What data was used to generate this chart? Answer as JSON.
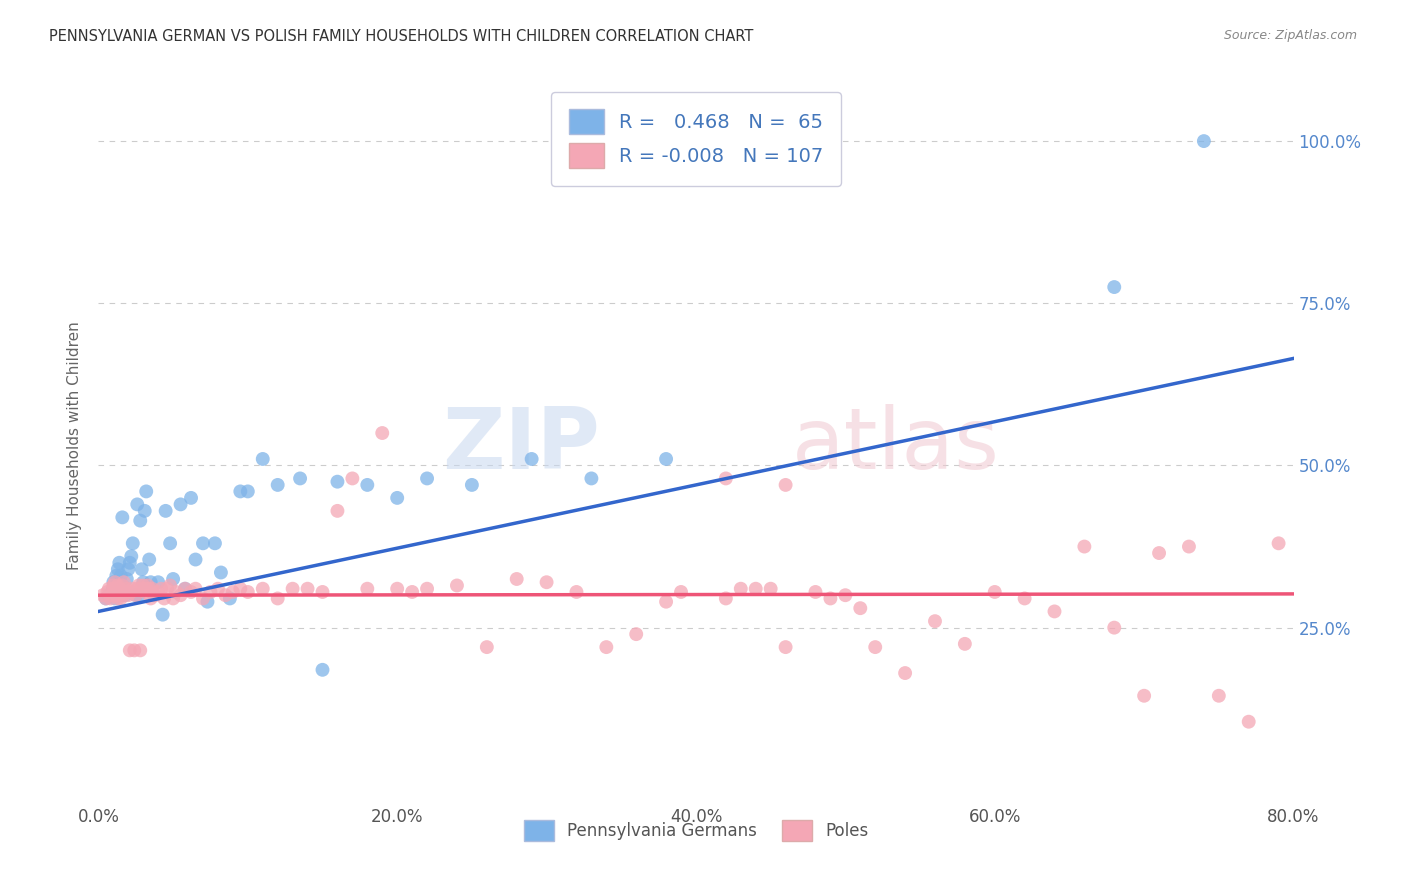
{
  "title": "PENNSYLVANIA GERMAN VS POLISH FAMILY HOUSEHOLDS WITH CHILDREN CORRELATION CHART",
  "source": "Source: ZipAtlas.com",
  "ylabel": "Family Households with Children",
  "xlabel_labels": [
    "Pennsylvania Germans",
    "Poles"
  ],
  "watermark_zip": "ZIP",
  "watermark_atlas": "atlas",
  "blue_R": "0.468",
  "blue_N": "65",
  "pink_R": "-0.008",
  "pink_N": "107",
  "blue_color": "#7EB3E8",
  "pink_color": "#F4A7B5",
  "blue_line_color": "#3366CC",
  "pink_line_color": "#EE5577",
  "xlim": [
    0.0,
    0.8
  ],
  "ylim": [
    -0.02,
    1.08
  ],
  "ytick_vals": [
    0.0,
    0.25,
    0.5,
    0.75,
    1.0
  ],
  "ytick_labels_right": [
    "",
    "25.0%",
    "50.0%",
    "75.0%",
    "100.0%"
  ],
  "xtick_vals": [
    0.0,
    0.2,
    0.4,
    0.6,
    0.8
  ],
  "xtick_labels": [
    "0.0%",
    "20.0%",
    "40.0%",
    "60.0%",
    "80.0%"
  ],
  "blue_scatter_x": [
    0.005,
    0.007,
    0.009,
    0.01,
    0.01,
    0.011,
    0.011,
    0.012,
    0.012,
    0.013,
    0.013,
    0.014,
    0.014,
    0.015,
    0.015,
    0.016,
    0.016,
    0.017,
    0.018,
    0.019,
    0.02,
    0.021,
    0.022,
    0.023,
    0.025,
    0.026,
    0.027,
    0.028,
    0.029,
    0.03,
    0.031,
    0.032,
    0.034,
    0.035,
    0.037,
    0.04,
    0.043,
    0.045,
    0.048,
    0.05,
    0.055,
    0.058,
    0.062,
    0.065,
    0.07,
    0.073,
    0.078,
    0.082,
    0.088,
    0.095,
    0.1,
    0.11,
    0.12,
    0.135,
    0.15,
    0.16,
    0.18,
    0.2,
    0.22,
    0.25,
    0.29,
    0.33,
    0.38,
    0.68,
    0.74
  ],
  "blue_scatter_y": [
    0.295,
    0.3,
    0.305,
    0.31,
    0.32,
    0.295,
    0.315,
    0.3,
    0.33,
    0.31,
    0.34,
    0.31,
    0.35,
    0.3,
    0.33,
    0.315,
    0.42,
    0.305,
    0.3,
    0.325,
    0.34,
    0.35,
    0.36,
    0.38,
    0.3,
    0.44,
    0.3,
    0.415,
    0.34,
    0.32,
    0.43,
    0.46,
    0.355,
    0.32,
    0.3,
    0.32,
    0.27,
    0.43,
    0.38,
    0.325,
    0.44,
    0.31,
    0.45,
    0.355,
    0.38,
    0.29,
    0.38,
    0.335,
    0.295,
    0.46,
    0.46,
    0.51,
    0.47,
    0.48,
    0.185,
    0.475,
    0.47,
    0.45,
    0.48,
    0.47,
    0.51,
    0.48,
    0.51,
    0.775,
    1.0
  ],
  "pink_scatter_x": [
    0.003,
    0.005,
    0.006,
    0.007,
    0.008,
    0.009,
    0.01,
    0.01,
    0.011,
    0.011,
    0.012,
    0.012,
    0.013,
    0.013,
    0.014,
    0.014,
    0.015,
    0.015,
    0.016,
    0.016,
    0.017,
    0.017,
    0.018,
    0.019,
    0.02,
    0.021,
    0.022,
    0.023,
    0.024,
    0.025,
    0.026,
    0.027,
    0.028,
    0.029,
    0.03,
    0.031,
    0.032,
    0.033,
    0.034,
    0.035,
    0.036,
    0.038,
    0.04,
    0.042,
    0.044,
    0.046,
    0.048,
    0.05,
    0.052,
    0.055,
    0.058,
    0.062,
    0.065,
    0.07,
    0.075,
    0.08,
    0.085,
    0.09,
    0.095,
    0.1,
    0.11,
    0.12,
    0.13,
    0.14,
    0.15,
    0.16,
    0.17,
    0.18,
    0.19,
    0.2,
    0.21,
    0.22,
    0.24,
    0.26,
    0.28,
    0.3,
    0.32,
    0.34,
    0.36,
    0.38,
    0.39,
    0.42,
    0.43,
    0.45,
    0.46,
    0.48,
    0.5,
    0.52,
    0.54,
    0.56,
    0.58,
    0.6,
    0.62,
    0.64,
    0.66,
    0.68,
    0.7,
    0.71,
    0.73,
    0.75,
    0.77,
    0.79,
    0.42,
    0.44,
    0.46,
    0.49,
    0.51
  ],
  "pink_scatter_y": [
    0.3,
    0.295,
    0.305,
    0.31,
    0.295,
    0.3,
    0.31,
    0.315,
    0.305,
    0.32,
    0.3,
    0.31,
    0.315,
    0.295,
    0.3,
    0.31,
    0.305,
    0.295,
    0.305,
    0.315,
    0.3,
    0.32,
    0.305,
    0.31,
    0.3,
    0.215,
    0.305,
    0.31,
    0.215,
    0.3,
    0.31,
    0.315,
    0.215,
    0.31,
    0.315,
    0.305,
    0.31,
    0.315,
    0.31,
    0.295,
    0.31,
    0.3,
    0.305,
    0.31,
    0.295,
    0.31,
    0.315,
    0.295,
    0.305,
    0.3,
    0.31,
    0.305,
    0.31,
    0.295,
    0.305,
    0.31,
    0.3,
    0.305,
    0.31,
    0.305,
    0.31,
    0.295,
    0.31,
    0.31,
    0.305,
    0.43,
    0.48,
    0.31,
    0.55,
    0.31,
    0.305,
    0.31,
    0.315,
    0.22,
    0.325,
    0.32,
    0.305,
    0.22,
    0.24,
    0.29,
    0.305,
    0.295,
    0.31,
    0.31,
    0.22,
    0.305,
    0.3,
    0.22,
    0.18,
    0.26,
    0.225,
    0.305,
    0.295,
    0.275,
    0.375,
    0.25,
    0.145,
    0.365,
    0.375,
    0.145,
    0.105,
    0.38,
    0.48,
    0.31,
    0.47,
    0.295,
    0.28
  ],
  "blue_line_x": [
    0.0,
    0.8
  ],
  "blue_line_y": [
    0.275,
    0.665
  ],
  "pink_line_x": [
    0.0,
    0.8
  ],
  "pink_line_y": [
    0.3,
    0.302
  ],
  "background_color": "#FFFFFF",
  "grid_color": "#CCCCCC",
  "grid_style": "--"
}
